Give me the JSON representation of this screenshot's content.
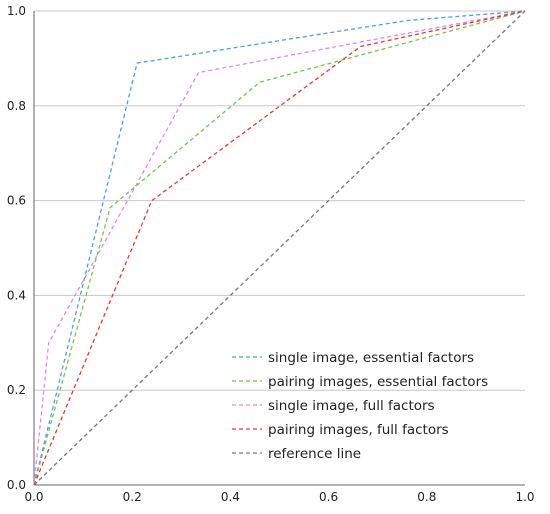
{
  "chart_data": {
    "type": "line",
    "xlim": [
      0.0,
      1.0
    ],
    "ylim": [
      0.0,
      1.0
    ],
    "xticks": [
      "0.0",
      "0.2",
      "0.4",
      "0.6",
      "0.8",
      "1.0"
    ],
    "yticks": [
      "0.0",
      "0.2",
      "0.4",
      "0.6",
      "0.8",
      "1.0"
    ],
    "grid": "horizontal",
    "legend_position": "bottom-right",
    "series": [
      {
        "name": "single image, essential factors",
        "color": "#4a9fe6",
        "dash": "dashed",
        "points": [
          [
            0.0,
            0.0
          ],
          [
            0.21,
            0.89
          ],
          [
            0.76,
            0.98
          ],
          [
            1.0,
            1.0
          ]
        ]
      },
      {
        "name": "pairing images, essential factors",
        "color": "#66cc44",
        "dash": "dashed",
        "points": [
          [
            0.0,
            0.0
          ],
          [
            0.155,
            0.585
          ],
          [
            0.46,
            0.85
          ],
          [
            1.0,
            1.0
          ]
        ]
      },
      {
        "name": "single image, full factors",
        "color": "#dd88ee",
        "dash": "dashed",
        "points": [
          [
            0.0,
            0.0
          ],
          [
            0.03,
            0.3
          ],
          [
            0.335,
            0.87
          ],
          [
            1.0,
            1.0
          ]
        ]
      },
      {
        "name": "pairing images, full factors",
        "color": "#ee3333",
        "dash": "dashed",
        "points": [
          [
            0.0,
            0.0
          ],
          [
            0.24,
            0.6
          ],
          [
            0.665,
            0.925
          ],
          [
            1.0,
            1.0
          ]
        ]
      },
      {
        "name": "reference line",
        "color": "#777777",
        "dash": "dashed",
        "points": [
          [
            0.0,
            0.0
          ],
          [
            1.0,
            1.0
          ]
        ]
      }
    ]
  }
}
